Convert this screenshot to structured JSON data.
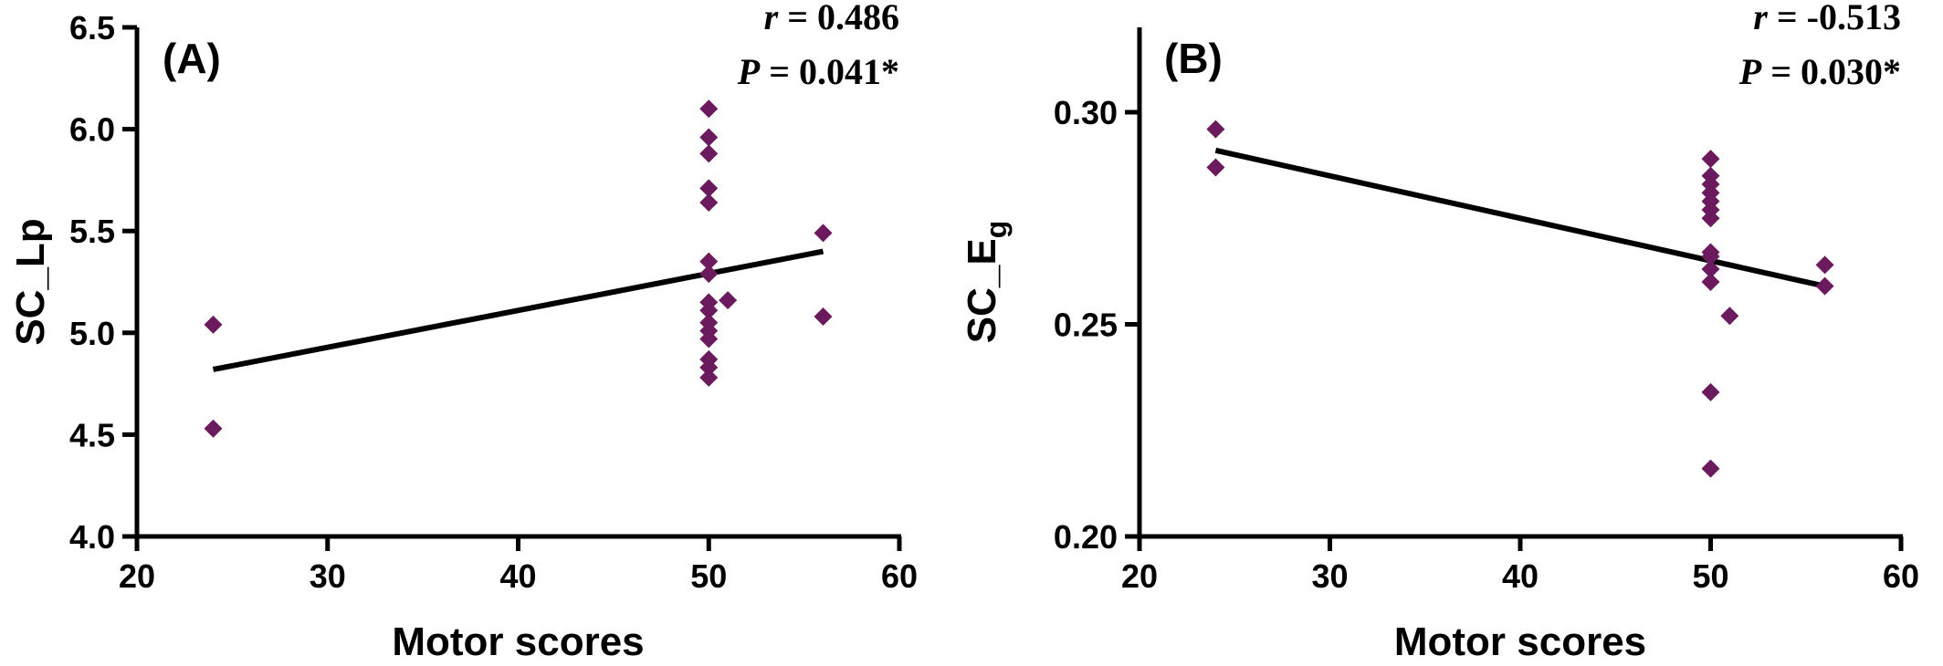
{
  "chart_data": [
    {
      "type": "scatter",
      "panel_label": "(A)",
      "xlabel": "Motor scores",
      "ylabel": "SC_Lp",
      "ylabel_sub": "",
      "xlim": [
        20,
        60
      ],
      "ylim": [
        4.0,
        6.5
      ],
      "xticks": [
        20,
        30,
        40,
        50,
        60
      ],
      "yticks": [
        4.0,
        4.5,
        5.0,
        5.5,
        6.0,
        6.5
      ],
      "ytick_labels": [
        "4.0",
        "4.5",
        "5.0",
        "5.5",
        "6.0",
        "6.5"
      ],
      "grid": false,
      "stats": {
        "r_symbol": "r",
        "r_text": " = 0.486",
        "p_symbol": "P",
        "p_text": " = 0.041*"
      },
      "series": [
        {
          "marker": "diamond",
          "color": "#6B1A5E",
          "points": [
            [
              24,
              5.04
            ],
            [
              24,
              4.53
            ],
            [
              50,
              6.1
            ],
            [
              50,
              5.96
            ],
            [
              50,
              5.88
            ],
            [
              50,
              5.71
            ],
            [
              50,
              5.64
            ],
            [
              50,
              5.35
            ],
            [
              50,
              5.29
            ],
            [
              50,
              5.15
            ],
            [
              50,
              5.11
            ],
            [
              50,
              5.05
            ],
            [
              50,
              5.01
            ],
            [
              50,
              4.97
            ],
            [
              50,
              4.87
            ],
            [
              50,
              4.83
            ],
            [
              50,
              4.78
            ],
            [
              51,
              5.16
            ],
            [
              56,
              5.49
            ],
            [
              56,
              5.08
            ]
          ]
        }
      ],
      "fit_line": {
        "color": "#000000",
        "x": [
          24,
          56
        ],
        "y": [
          4.82,
          5.4
        ]
      }
    },
    {
      "type": "scatter",
      "panel_label": "(B)",
      "xlabel": "Motor scores",
      "ylabel": "SC_E",
      "ylabel_sub": "g",
      "xlim": [
        20,
        60
      ],
      "ylim": [
        0.2,
        0.32
      ],
      "xticks": [
        20,
        30,
        40,
        50,
        60
      ],
      "yticks": [
        0.2,
        0.25,
        0.3
      ],
      "ytick_labels": [
        "0.20",
        "0.25",
        "0.30"
      ],
      "grid": false,
      "stats": {
        "r_symbol": "r",
        "r_text": " = -0.513",
        "p_symbol": "P",
        "p_text": " = 0.030*"
      },
      "series": [
        {
          "marker": "diamond",
          "color": "#6B1A5E",
          "points": [
            [
              24,
              0.296
            ],
            [
              24,
              0.287
            ],
            [
              50,
              0.289
            ],
            [
              50,
              0.285
            ],
            [
              50,
              0.283
            ],
            [
              50,
              0.281
            ],
            [
              50,
              0.279
            ],
            [
              50,
              0.277
            ],
            [
              50,
              0.275
            ],
            [
              50,
              0.267
            ],
            [
              50,
              0.266
            ],
            [
              50,
              0.263
            ],
            [
              50,
              0.26
            ],
            [
              50,
              0.234
            ],
            [
              50,
              0.216
            ],
            [
              51,
              0.252
            ],
            [
              56,
              0.264
            ],
            [
              56,
              0.259
            ]
          ]
        }
      ],
      "fit_line": {
        "color": "#000000",
        "x": [
          24,
          56
        ],
        "y": [
          0.291,
          0.259
        ]
      }
    }
  ]
}
